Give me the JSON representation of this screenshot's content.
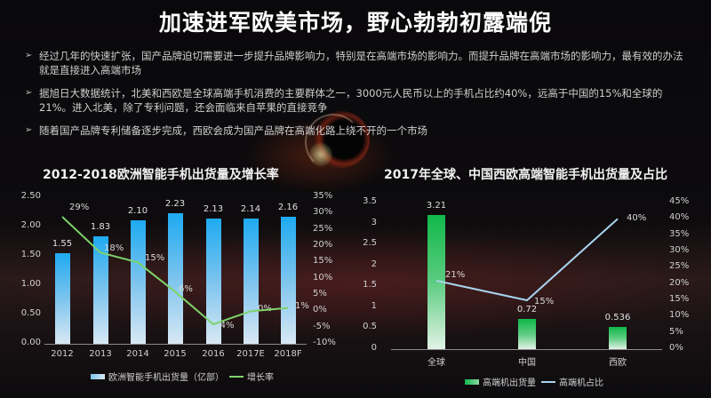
{
  "title": "加速进军欧美市场，野心勃勃初露端倪",
  "bullets": [
    {
      "icon": "arrow-bullet-icon",
      "text": "经过几年的快速扩张，国产品牌迫切需要进一步提升品牌影响力，特别是在高端市场的影响力。而提升品牌在高端市场的影响力，最有效的办法就是直接进入高端市场"
    },
    {
      "icon": "arrow-bullet-icon",
      "text": "据旭日大数据统计，北美和西欧是全球高端手机消费的主要群体之一，3000元人民币以上的手机占比约40%，远高于中国的15%和全球的21%。进入北美，除了专利问题，还会面临来自苹果的直接竞争"
    },
    {
      "icon": "arrow-bullet-icon",
      "text": "随着国产品牌专利储备逐步完成，西欧会成为国产品牌在高端化路上绕不开的一个市场"
    }
  ],
  "colors": {
    "bar_blue": "#1eaaf0",
    "line_green": "#7ed36a",
    "bar_green": "#10b84a",
    "line_blue": "#a8d4ee"
  },
  "chart_data": [
    {
      "type": "bar",
      "title": "2012-2018欧洲智能手机出货量及增长率",
      "categories": [
        "2012",
        "2013",
        "2014",
        "2015",
        "2016",
        "2017E",
        "2018F"
      ],
      "series": [
        {
          "name": "欧洲智能手机出货量（亿部）",
          "type": "bar",
          "axis": "left",
          "values": [
            1.55,
            1.83,
            2.1,
            2.23,
            2.13,
            2.14,
            2.16
          ],
          "labels": [
            "1.55",
            "1.83",
            "2.10",
            "2.23",
            "2.13",
            "2.14",
            "2.16"
          ]
        },
        {
          "name": "增长率",
          "type": "line",
          "axis": "right",
          "values": [
            29,
            18,
            15,
            6,
            -4,
            0,
            1
          ],
          "labels": [
            "29%",
            "18%",
            "15%",
            "6%",
            "-4%",
            "0%",
            "1%"
          ]
        }
      ],
      "y_left": {
        "ticks": [
          "0.00",
          "0.50",
          "1.00",
          "1.50",
          "2.00",
          "2.50"
        ],
        "ylim": [
          0,
          2.5
        ]
      },
      "y_right": {
        "ticks": [
          "-10%",
          "-5%",
          "0%",
          "5%",
          "10%",
          "15%",
          "20%",
          "25%",
          "30%",
          "35%"
        ],
        "ylim": [
          -10,
          35
        ]
      },
      "legend": [
        "欧洲智能手机出货量（亿部）",
        "增长率"
      ],
      "legend_position": "bottom",
      "grid": false
    },
    {
      "type": "bar",
      "title": "2017年全球、中国西欧高端智能手机出货量及占比",
      "categories": [
        "全球",
        "中国",
        "西欧"
      ],
      "series": [
        {
          "name": "高端机出货量",
          "type": "bar",
          "axis": "left",
          "values": [
            3.21,
            0.72,
            0.536
          ],
          "labels": [
            "3.21",
            "0.72",
            "0.536"
          ]
        },
        {
          "name": "高端机占比",
          "type": "line",
          "axis": "right",
          "values": [
            21,
            15,
            40
          ],
          "labels": [
            "21%",
            "15%",
            "40%"
          ]
        }
      ],
      "y_left": {
        "ticks": [
          "0",
          "0.5",
          "1",
          "1.5",
          "2",
          "2.5",
          "3",
          "3.5"
        ],
        "ylim": [
          0,
          3.5
        ]
      },
      "y_right": {
        "ticks": [
          "0%",
          "5%",
          "10%",
          "15%",
          "20%",
          "25%",
          "30%",
          "35%",
          "40%",
          "45%"
        ],
        "ylim": [
          0,
          45
        ]
      },
      "legend": [
        "高端机出货量",
        "高端机占比"
      ],
      "legend_position": "bottom",
      "grid": false
    }
  ]
}
